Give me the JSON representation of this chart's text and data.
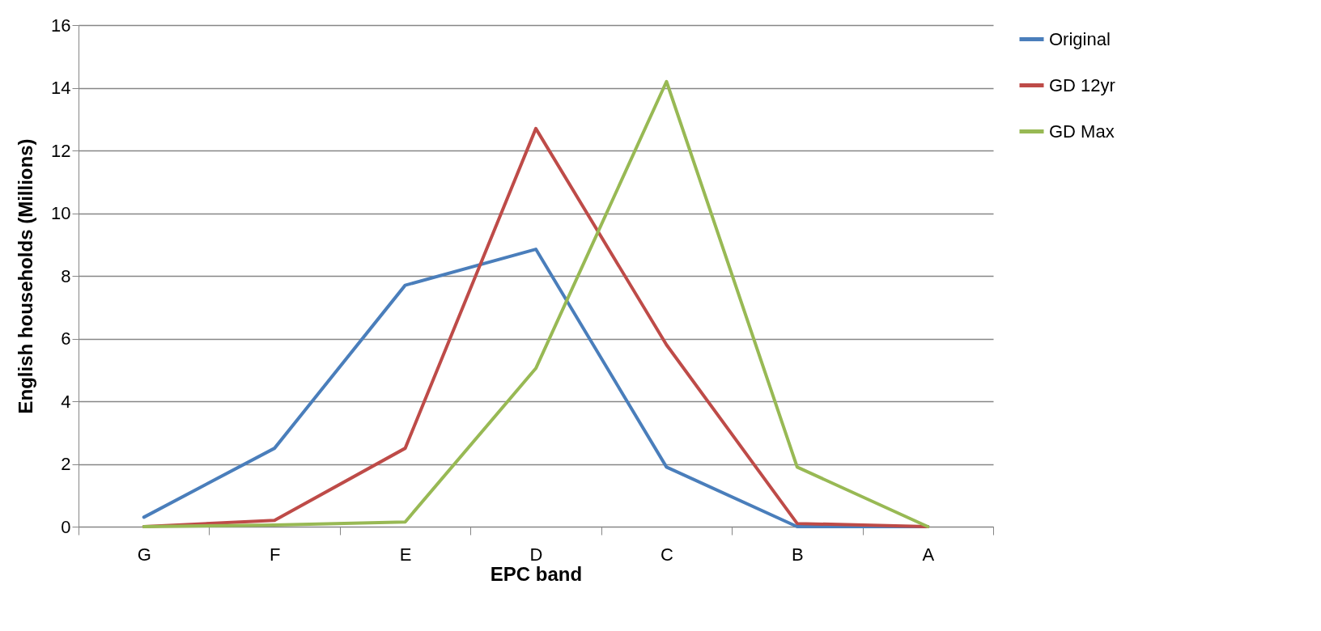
{
  "chart_data": {
    "type": "line",
    "xlabel": "EPC band",
    "ylabel": "English households (Millions)",
    "categories": [
      "G",
      "F",
      "E",
      "D",
      "C",
      "B",
      "A"
    ],
    "series": [
      {
        "name": "Original",
        "color": "#4a7ebb",
        "values": [
          0.3,
          2.5,
          7.7,
          8.85,
          1.9,
          0,
          0
        ]
      },
      {
        "name": "GD 12yr",
        "color": "#be4b48",
        "values": [
          0,
          0.2,
          2.5,
          12.7,
          5.8,
          0.1,
          0
        ]
      },
      {
        "name": "GD Max",
        "color": "#98b954",
        "values": [
          0,
          0.05,
          0.15,
          5.05,
          14.2,
          1.9,
          0
        ]
      }
    ],
    "ylim": [
      0,
      16
    ],
    "yticks": [
      0,
      2,
      4,
      6,
      8,
      10,
      12,
      14,
      16
    ],
    "grid": "y",
    "legend": "right",
    "marker": "none",
    "line_style": "solid"
  }
}
